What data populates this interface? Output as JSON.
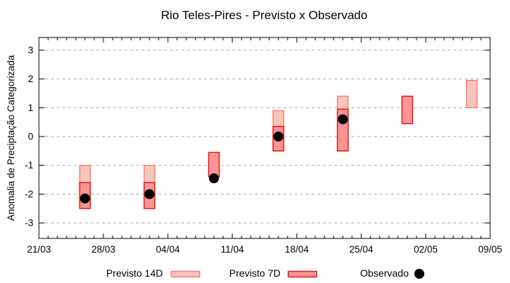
{
  "window": {
    "title": "Rio Teles-Pires - Previsto x Observado"
  },
  "chart_data": {
    "type": "bar",
    "title": "Rio Teles-Pires - Previsto x Observado",
    "xlabel": "",
    "ylabel": "Anomalia de Preciptação Categorizada",
    "ylim": [
      -3.45,
      3.45
    ],
    "yticks": [
      3,
      2,
      1,
      0,
      -1,
      -2,
      -3
    ],
    "x_axis": {
      "start_date": "21/03",
      "end_date": "09/05",
      "tick_labels": [
        "21/03",
        "28/03",
        "04/04",
        "11/04",
        "18/04",
        "25/04",
        "02/05",
        "09/05"
      ],
      "tick_days": [
        0,
        7,
        14,
        21,
        28,
        35,
        42,
        49
      ],
      "minor_tick_interval_days": 1,
      "span_days": 49
    },
    "grid": {
      "horizontal": true,
      "style": "dashed",
      "color": "#aaaaaa"
    },
    "legend_position": "bottom-center",
    "series": [
      {
        "name": "Previsto 14D",
        "type": "range-bar",
        "fill_color": "#f9c4bc",
        "border_color": "#ef8576",
        "points": [
          {
            "date": "26/03",
            "day": 5,
            "low": -2.5,
            "high": -1.0
          },
          {
            "date": "02/04",
            "day": 12,
            "low": -2.5,
            "high": -1.0
          },
          {
            "date": "16/04",
            "day": 26,
            "low": -0.5,
            "high": 0.9
          },
          {
            "date": "23/04",
            "day": 33,
            "low": -0.5,
            "high": 1.4
          },
          {
            "date": "07/05",
            "day": 47,
            "low": 1.0,
            "high": 1.95
          }
        ]
      },
      {
        "name": "Previsto 7D",
        "type": "range-bar",
        "fill_color": "#f99593",
        "border_color": "#e31b1c",
        "points": [
          {
            "date": "26/03",
            "day": 5,
            "low": -2.5,
            "high": -1.6
          },
          {
            "date": "02/04",
            "day": 12,
            "low": -2.5,
            "high": -1.6
          },
          {
            "date": "09/04",
            "day": 19,
            "low": -1.4,
            "high": -0.55
          },
          {
            "date": "16/04",
            "day": 26,
            "low": -0.5,
            "high": 0.35
          },
          {
            "date": "23/04",
            "day": 33,
            "low": -0.5,
            "high": 0.95
          },
          {
            "date": "30/04",
            "day": 40,
            "low": 0.45,
            "high": 1.4
          }
        ]
      },
      {
        "name": "Observado",
        "type": "scatter",
        "color": "#000000",
        "points": [
          {
            "date": "26/03",
            "day": 5,
            "value": -2.15
          },
          {
            "date": "02/04",
            "day": 12,
            "value": -2.0
          },
          {
            "date": "09/04",
            "day": 19,
            "value": -1.45
          },
          {
            "date": "16/04",
            "day": 26,
            "value": 0.0
          },
          {
            "date": "23/04",
            "day": 33,
            "value": 0.6
          }
        ]
      }
    ]
  },
  "legend": {
    "items": [
      {
        "label": "Previsto 14D",
        "swatch": "light-pink-box"
      },
      {
        "label": "Previsto 7D",
        "swatch": "red-box"
      },
      {
        "label": "Observado",
        "swatch": "black-dot"
      }
    ]
  }
}
